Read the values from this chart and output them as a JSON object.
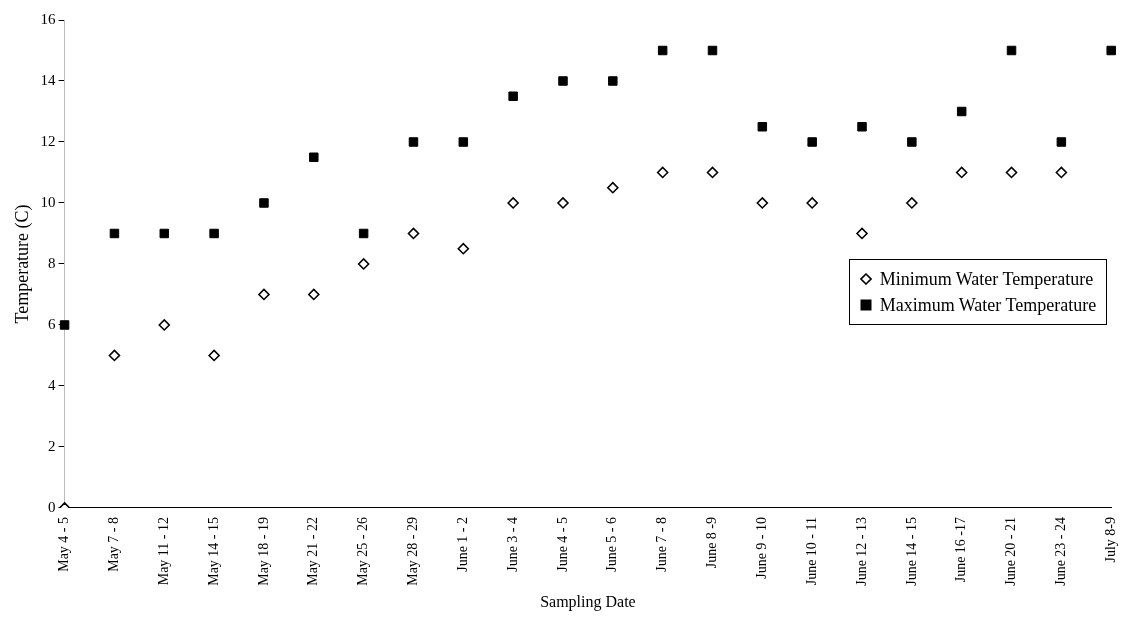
{
  "chart_data": {
    "type": "scatter",
    "xlabel": "Sampling Date",
    "ylabel": "Temperature (C)",
    "categories": [
      "May 4 - 5",
      "May 7 - 8",
      "May 11 - 12",
      "May 14 - 15",
      "May 18 - 19",
      "May 21 - 22",
      "May 25 - 26",
      "May 28 - 29",
      "June 1 - 2",
      "June 3 - 4",
      "June 4 - 5",
      "June 5 - 6",
      "June 7 - 8",
      "June 8 -9",
      "June 9 - 10",
      "June 10 - 11",
      "June 12 - 13",
      "June 14 - 15",
      "June 16 -17",
      "June 20 - 21",
      "June 23 - 24",
      "July 8-9"
    ],
    "series": [
      {
        "name": "Minimum Water Temperature",
        "color": "#000000",
        "marker": "diamond",
        "values": [
          0,
          5,
          6,
          5,
          7,
          7,
          8,
          9,
          8.5,
          10,
          10,
          10.5,
          11,
          11,
          10,
          10,
          9,
          10,
          11,
          11,
          11,
          null
        ]
      },
      {
        "name": "Maximum Water Temperature",
        "color": "#000000",
        "marker": "square",
        "values": [
          6,
          9,
          9,
          9,
          10,
          11.5,
          9,
          12,
          12,
          13.5,
          14,
          14,
          15,
          15,
          12.5,
          12,
          12.5,
          12,
          13,
          15,
          12,
          15
        ]
      }
    ],
    "ylim": [
      0,
      16
    ],
    "yticks": [
      0,
      2,
      4,
      6,
      8,
      10,
      12,
      14,
      16
    ],
    "grid": false,
    "legend": "right"
  }
}
